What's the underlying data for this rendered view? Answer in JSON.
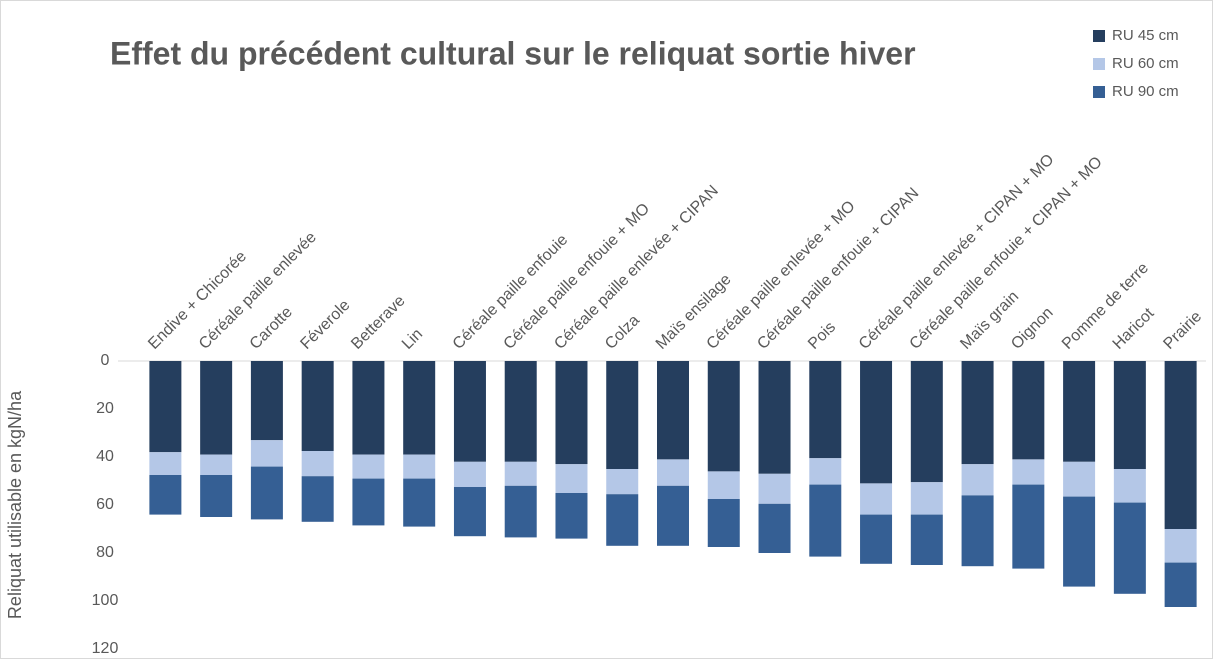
{
  "chart_data": {
    "type": "stacked_bar",
    "title": "Effet du précédent cultural sur le reliquat sortie hiver",
    "y_label": "Reliquat utilisable en kgN/ha",
    "categories": [
      "Endive + Chicorée",
      "Céréale paille enlevée",
      "Carotte",
      "Féverole",
      "Betterave",
      "Lin",
      "Céréale paille enfouie",
      "Céréale paille enfouie + MO",
      "Céréale paille enlevée + CIPAN",
      "Colza",
      "Maïs ensilage",
      "Céréale paille enlevée + MO",
      "Céréale paille enfouie + CIPAN",
      "Pois",
      "Céréale paille enlevée + CIPAN + MO",
      "Céréale paille enfouie + CIPAN + MO",
      "Maïs grain",
      "Oignon",
      "Pomme de terre",
      "Haricot",
      "Prairie"
    ],
    "series": [
      {
        "name": "RU 45 cm",
        "color": "#253e5e",
        "values": [
          38,
          39,
          33,
          37.5,
          39,
          39,
          42,
          42,
          43,
          45,
          41,
          46,
          47,
          40.5,
          51,
          50.5,
          43,
          41,
          42,
          45,
          70
        ]
      },
      {
        "name": "RU 60 cm",
        "color": "#b4c7e7",
        "values": [
          9.5,
          8.5,
          11,
          10.5,
          10,
          10,
          10.5,
          10,
          12,
          10.5,
          11,
          11.5,
          12.5,
          11,
          13,
          13.5,
          13,
          10.5,
          14.5,
          14,
          14
        ]
      },
      {
        "name": "RU 90 cm",
        "color": "#355f94",
        "values": [
          16.5,
          17.5,
          22,
          19,
          19.5,
          20,
          20.5,
          21.5,
          19,
          21.5,
          25,
          20,
          20.5,
          30,
          20.5,
          21,
          29.5,
          35,
          37.5,
          38,
          18.5
        ]
      }
    ],
    "ylim": [
      0,
      120
    ],
    "yticks": [
      0,
      20,
      40,
      60,
      80,
      100,
      120
    ],
    "y_inverted": true,
    "legend": "top-right"
  }
}
